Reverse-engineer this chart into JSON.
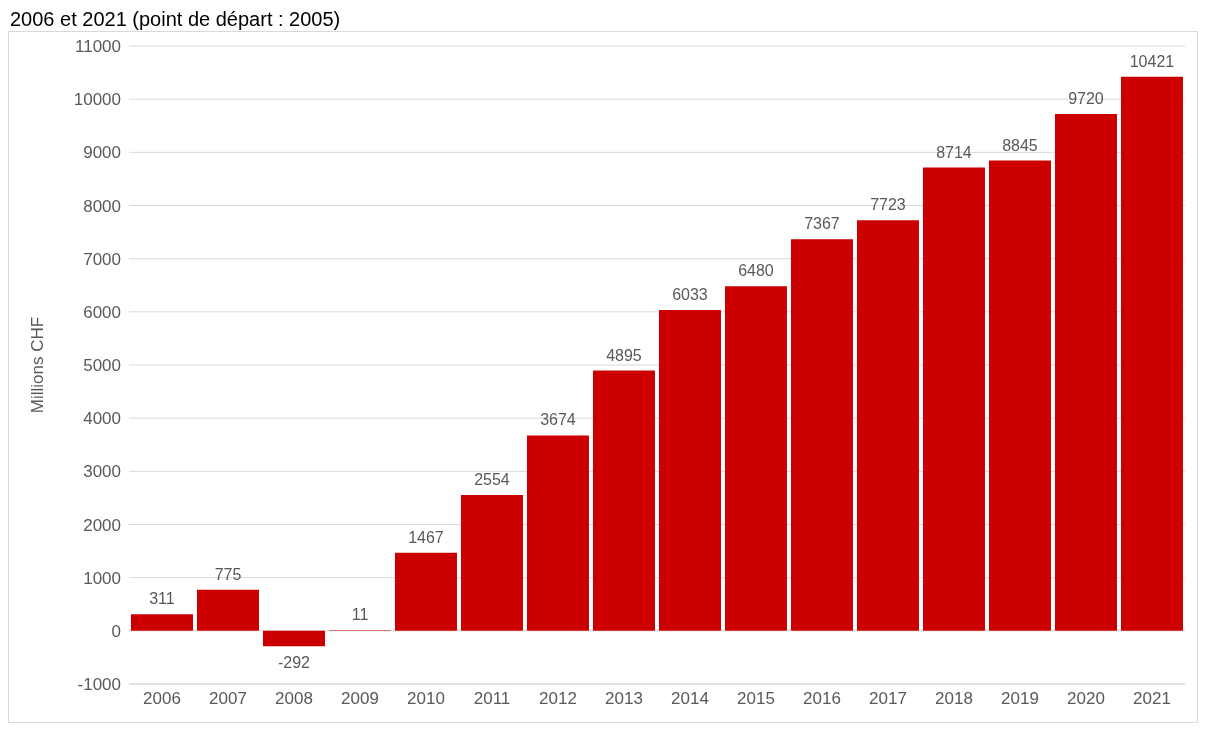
{
  "chart_data": {
    "type": "bar",
    "title": "2006 et 2021 (point de départ : 2005)",
    "ylabel": "Millions CHF",
    "categories": [
      "2006",
      "2007",
      "2008",
      "2009",
      "2010",
      "2011",
      "2012",
      "2013",
      "2014",
      "2015",
      "2016",
      "2017",
      "2018",
      "2019",
      "2020",
      "2021"
    ],
    "values": [
      311,
      775,
      -292,
      11,
      1467,
      2554,
      3674,
      4895,
      6033,
      6480,
      7367,
      7723,
      8714,
      8845,
      9720,
      10421
    ],
    "color": "#cc0000",
    "data_labels": true,
    "grid": "y",
    "legend": false,
    "ylim": [
      -1000,
      11000
    ],
    "yticks": [
      -1000,
      0,
      1000,
      2000,
      3000,
      4000,
      5000,
      6000,
      7000,
      8000,
      9000,
      10000,
      11000
    ]
  }
}
